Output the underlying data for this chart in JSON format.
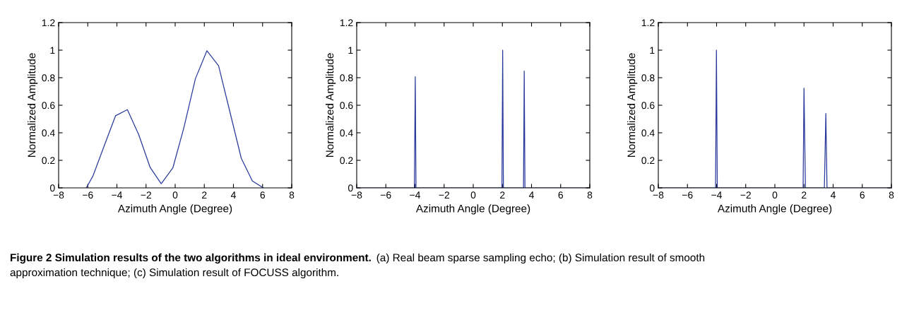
{
  "chart_data": [
    {
      "type": "line",
      "xlabel": "Azimuth Angle (Degree)",
      "ylabel": "Normalized Amplitude",
      "x": [
        -6.1,
        -5.65,
        -4.89,
        -4.09,
        -3.28,
        -2.5,
        -1.72,
        -0.96,
        -0.16,
        0.59,
        1.39,
        2.18,
        2.98,
        3.74,
        4.54,
        5.3,
        6.05
      ],
      "series": [
        {
          "color": "#2a3a9c",
          "values": [
            0,
            0.085,
            0.3,
            0.524,
            0.568,
            0.386,
            0.149,
            0.03,
            0.145,
            0.434,
            0.793,
            0.996,
            0.887,
            0.559,
            0.214,
            0.05,
            0
          ]
        }
      ],
      "xlim": [
        -8,
        8
      ],
      "ylim": [
        0,
        1.2
      ],
      "xticks": [
        {
          "value": -8,
          "label": "−8"
        },
        {
          "value": -6,
          "label": "−6"
        },
        {
          "value": -4,
          "label": "−4"
        },
        {
          "value": -2,
          "label": "−2"
        },
        0,
        2,
        4,
        6,
        8
      ],
      "yticks": [
        0,
        0.2,
        0.4,
        0.6,
        0.8,
        1,
        1.2
      ],
      "grid": false,
      "marker": "none",
      "line_style": "solid",
      "annotations": [
        "Figure 2 Simulation results of the two algorithms in ideal environment.",
        "(a) Real beam sparse sampling echo; (b) Simulation result of smooth",
        "approximation technique; (c) Simulation result of FOCUSS algorithm."
      ]
    },
    {
      "type": "line",
      "xlabel": "Azimuth Angle (Degree)",
      "ylabel": "Normalized Amplitude",
      "x": [
        -8,
        -4.04,
        -3.98,
        -3.93,
        1.97,
        2.02,
        2.07,
        3.45,
        3.5,
        3.55,
        8
      ],
      "series": [
        {
          "color": "#2a3a9c",
          "values": [
            0,
            0,
            0.807,
            0,
            0,
            1.0,
            0,
            0,
            0.848,
            0,
            0
          ]
        }
      ],
      "xlim": [
        -8,
        8
      ],
      "ylim": [
        0,
        1.2
      ],
      "xticks": [
        {
          "value": -8,
          "label": "−8"
        },
        {
          "value": -6,
          "label": "−6"
        },
        {
          "value": -4,
          "label": "−4"
        },
        {
          "value": -2,
          "label": "−2"
        },
        0,
        2,
        4,
        6,
        8
      ],
      "yticks": [
        0,
        0.2,
        0.4,
        0.6,
        0.8,
        1,
        1.2
      ],
      "grid": false,
      "marker": "none",
      "line_style": "solid"
    },
    {
      "type": "line",
      "xlabel": "Azimuth Angle (Degree)",
      "ylabel": "Normalized Amplitude",
      "x": [
        -8,
        -4.07,
        -4.01,
        -3.95,
        1.94,
        2.0,
        2.1,
        3.4,
        3.5,
        3.58,
        8
      ],
      "series": [
        {
          "color": "#2a3a9c",
          "values": [
            0,
            0,
            1.0,
            0,
            0,
            0.724,
            0,
            0,
            0.54,
            0,
            0
          ]
        }
      ],
      "xlim": [
        -8,
        8
      ],
      "ylim": [
        0,
        1.2
      ],
      "xticks": [
        {
          "value": -8,
          "label": "−8"
        },
        {
          "value": -6,
          "label": "−6"
        },
        {
          "value": -4,
          "label": "−4"
        },
        {
          "value": -2,
          "label": "−2"
        },
        0,
        2,
        4,
        6,
        8
      ],
      "yticks": [
        0,
        0.2,
        0.4,
        0.6,
        0.8,
        1,
        1.2
      ],
      "grid": false,
      "marker": "none",
      "line_style": "solid"
    }
  ]
}
